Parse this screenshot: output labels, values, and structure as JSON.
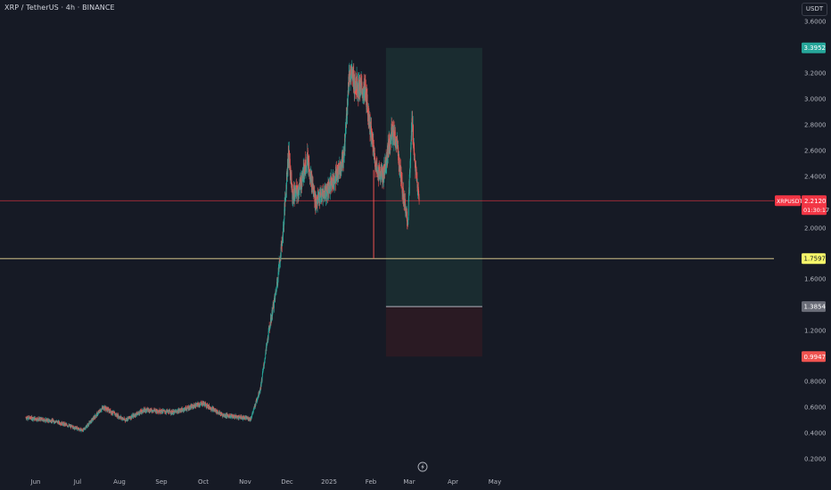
{
  "header": {
    "title": "XRP / TetherUS · 4h · BINANCE",
    "currency_badge": "USDT"
  },
  "colors": {
    "background": "#161a25",
    "up": "#26a69a",
    "down": "#ef5350",
    "axis_text": "#b2b5be",
    "profit_zone": "#1a2c30",
    "loss_zone": "#2a1a23",
    "entry_line": "#b2b5be",
    "price_line": "#f23645",
    "yellow_level": "#d1c28a"
  },
  "chart_data": {
    "type": "candlestick",
    "symbol": "XRPUSDT",
    "interval": "4h",
    "exchange": "BINANCE",
    "y_ticks": [
      "3.6000",
      "3.2000",
      "3.0000",
      "2.8000",
      "2.6000",
      "2.4000",
      "2.0000",
      "1.6000",
      "1.2000",
      "0.8000",
      "0.6000",
      "0.4000",
      "0.2000"
    ],
    "ylim": [
      0.2,
      3.6
    ],
    "x_ticks": [
      "Jun",
      "Jul",
      "Aug",
      "Sep",
      "Oct",
      "Nov",
      "Dec",
      "2025",
      "Feb",
      "Mar",
      "Apr",
      "May"
    ],
    "price_series_anchors": [
      {
        "date": "2024-05-25",
        "price": 0.52
      },
      {
        "date": "2024-06-15",
        "price": 0.49
      },
      {
        "date": "2024-07-05",
        "price": 0.42
      },
      {
        "date": "2024-07-20",
        "price": 0.6
      },
      {
        "date": "2024-08-05",
        "price": 0.5
      },
      {
        "date": "2024-08-20",
        "price": 0.58
      },
      {
        "date": "2024-09-10",
        "price": 0.56
      },
      {
        "date": "2024-10-01",
        "price": 0.63
      },
      {
        "date": "2024-10-15",
        "price": 0.54
      },
      {
        "date": "2024-11-05",
        "price": 0.51
      },
      {
        "date": "2024-11-12",
        "price": 0.75
      },
      {
        "date": "2024-11-18",
        "price": 1.2
      },
      {
        "date": "2024-11-23",
        "price": 1.5
      },
      {
        "date": "2024-11-28",
        "price": 1.95
      },
      {
        "date": "2024-12-02",
        "price": 2.6
      },
      {
        "date": "2024-12-05",
        "price": 2.25
      },
      {
        "date": "2024-12-10",
        "price": 2.3
      },
      {
        "date": "2024-12-16",
        "price": 2.55
      },
      {
        "date": "2024-12-22",
        "price": 2.2
      },
      {
        "date": "2024-12-31",
        "price": 2.3
      },
      {
        "date": "2025-01-06",
        "price": 2.4
      },
      {
        "date": "2025-01-12",
        "price": 2.55
      },
      {
        "date": "2025-01-16",
        "price": 3.2
      },
      {
        "date": "2025-01-22",
        "price": 3.1
      },
      {
        "date": "2025-01-28",
        "price": 3.05
      },
      {
        "date": "2025-02-01",
        "price": 2.75
      },
      {
        "date": "2025-02-05",
        "price": 2.45
      },
      {
        "date": "2025-02-10",
        "price": 2.4
      },
      {
        "date": "2025-02-16",
        "price": 2.75
      },
      {
        "date": "2025-02-20",
        "price": 2.65
      },
      {
        "date": "2025-02-24",
        "price": 2.3
      },
      {
        "date": "2025-02-28",
        "price": 2.05
      },
      {
        "date": "2025-03-03",
        "price": 2.85
      },
      {
        "date": "2025-03-05",
        "price": 2.5
      },
      {
        "date": "2025-03-08",
        "price": 2.21
      }
    ],
    "position_tool": {
      "start_date": "2025-02-12",
      "end_date": "2025-04-22",
      "take_profit": 3.3952,
      "entry": 1.3854,
      "stop_loss": 0.9947
    },
    "horizontal_levels": [
      {
        "price": 1.7597
      }
    ],
    "price_labels": {
      "take_profit": "3.3952",
      "level": "1.7597",
      "entry": "1.3854",
      "stop_loss": "0.9947",
      "current_symbol": "XRPUSDT",
      "current_price": "2.2120",
      "countdown": "01:30:17",
      "current_value": 2.212
    },
    "lightning_icon": "lightning-bolt-icon"
  }
}
